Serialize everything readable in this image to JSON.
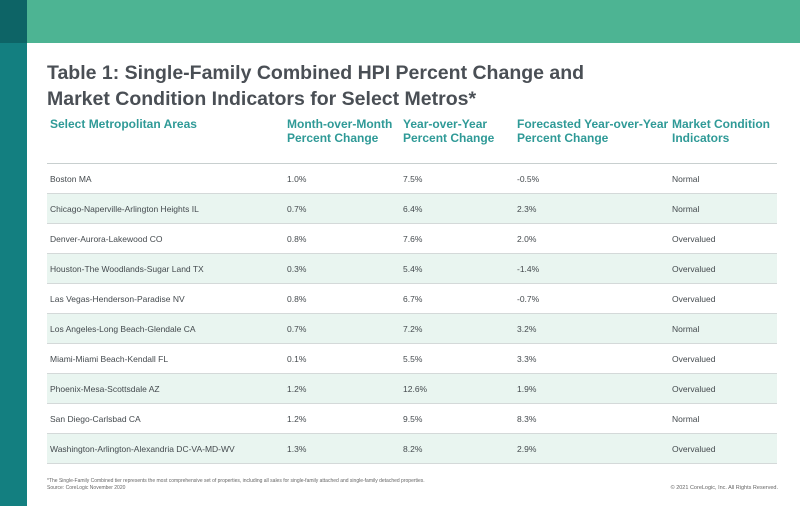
{
  "title": {
    "line1": "Table 1: Single-Family Combined HPI Percent Change and",
    "line2": "Market Condition Indicators for Select Metros*"
  },
  "table": {
    "headers": [
      "Select Metropolitan Areas",
      "Month-over-Month Percent Change",
      "Year-over-Year Percent Change",
      "Forecasted Year-over-Year Percent Change",
      "Market Condition Indicators"
    ],
    "rows": [
      [
        "Boston MA",
        "1.0%",
        "7.5%",
        "-0.5%",
        "Normal"
      ],
      [
        "Chicago-Naperville-Arlington Heights IL",
        "0.7%",
        "6.4%",
        "2.3%",
        "Normal"
      ],
      [
        "Denver-Aurora-Lakewood CO",
        "0.8%",
        "7.6%",
        "2.0%",
        "Overvalued"
      ],
      [
        "Houston-The Woodlands-Sugar Land TX",
        "0.3%",
        "5.4%",
        "-1.4%",
        "Overvalued"
      ],
      [
        "Las Vegas-Henderson-Paradise NV",
        "0.8%",
        "6.7%",
        "-0.7%",
        "Overvalued"
      ],
      [
        "Los Angeles-Long Beach-Glendale CA",
        "0.7%",
        "7.2%",
        "3.2%",
        "Normal"
      ],
      [
        "Miami-Miami Beach-Kendall FL",
        "0.1%",
        "5.5%",
        "3.3%",
        "Overvalued"
      ],
      [
        "Phoenix-Mesa-Scottsdale AZ",
        "1.2%",
        "12.6%",
        "1.9%",
        "Overvalued"
      ],
      [
        "San Diego-Carlsbad CA",
        "1.2%",
        "9.5%",
        "8.3%",
        "Normal"
      ],
      [
        "Washington-Arlington-Alexandria DC-VA-MD-WV",
        "1.3%",
        "8.2%",
        "2.9%",
        "Overvalued"
      ]
    ]
  },
  "footnote": {
    "line1": "*The Single-Family Combined tier represents the most comprehensive set of properties, including all sales for single-family attached and single-family detached properties.",
    "line2": "Source: CoreLogic November 2020"
  },
  "copyright": "© 2021 CoreLogic, Inc. All Rights Reserved.",
  "colors": {
    "top_bar": "#4db493",
    "left_bar": "#137f80",
    "header_text": "#2f9a97",
    "row_stripe": "#e9f5f0"
  }
}
